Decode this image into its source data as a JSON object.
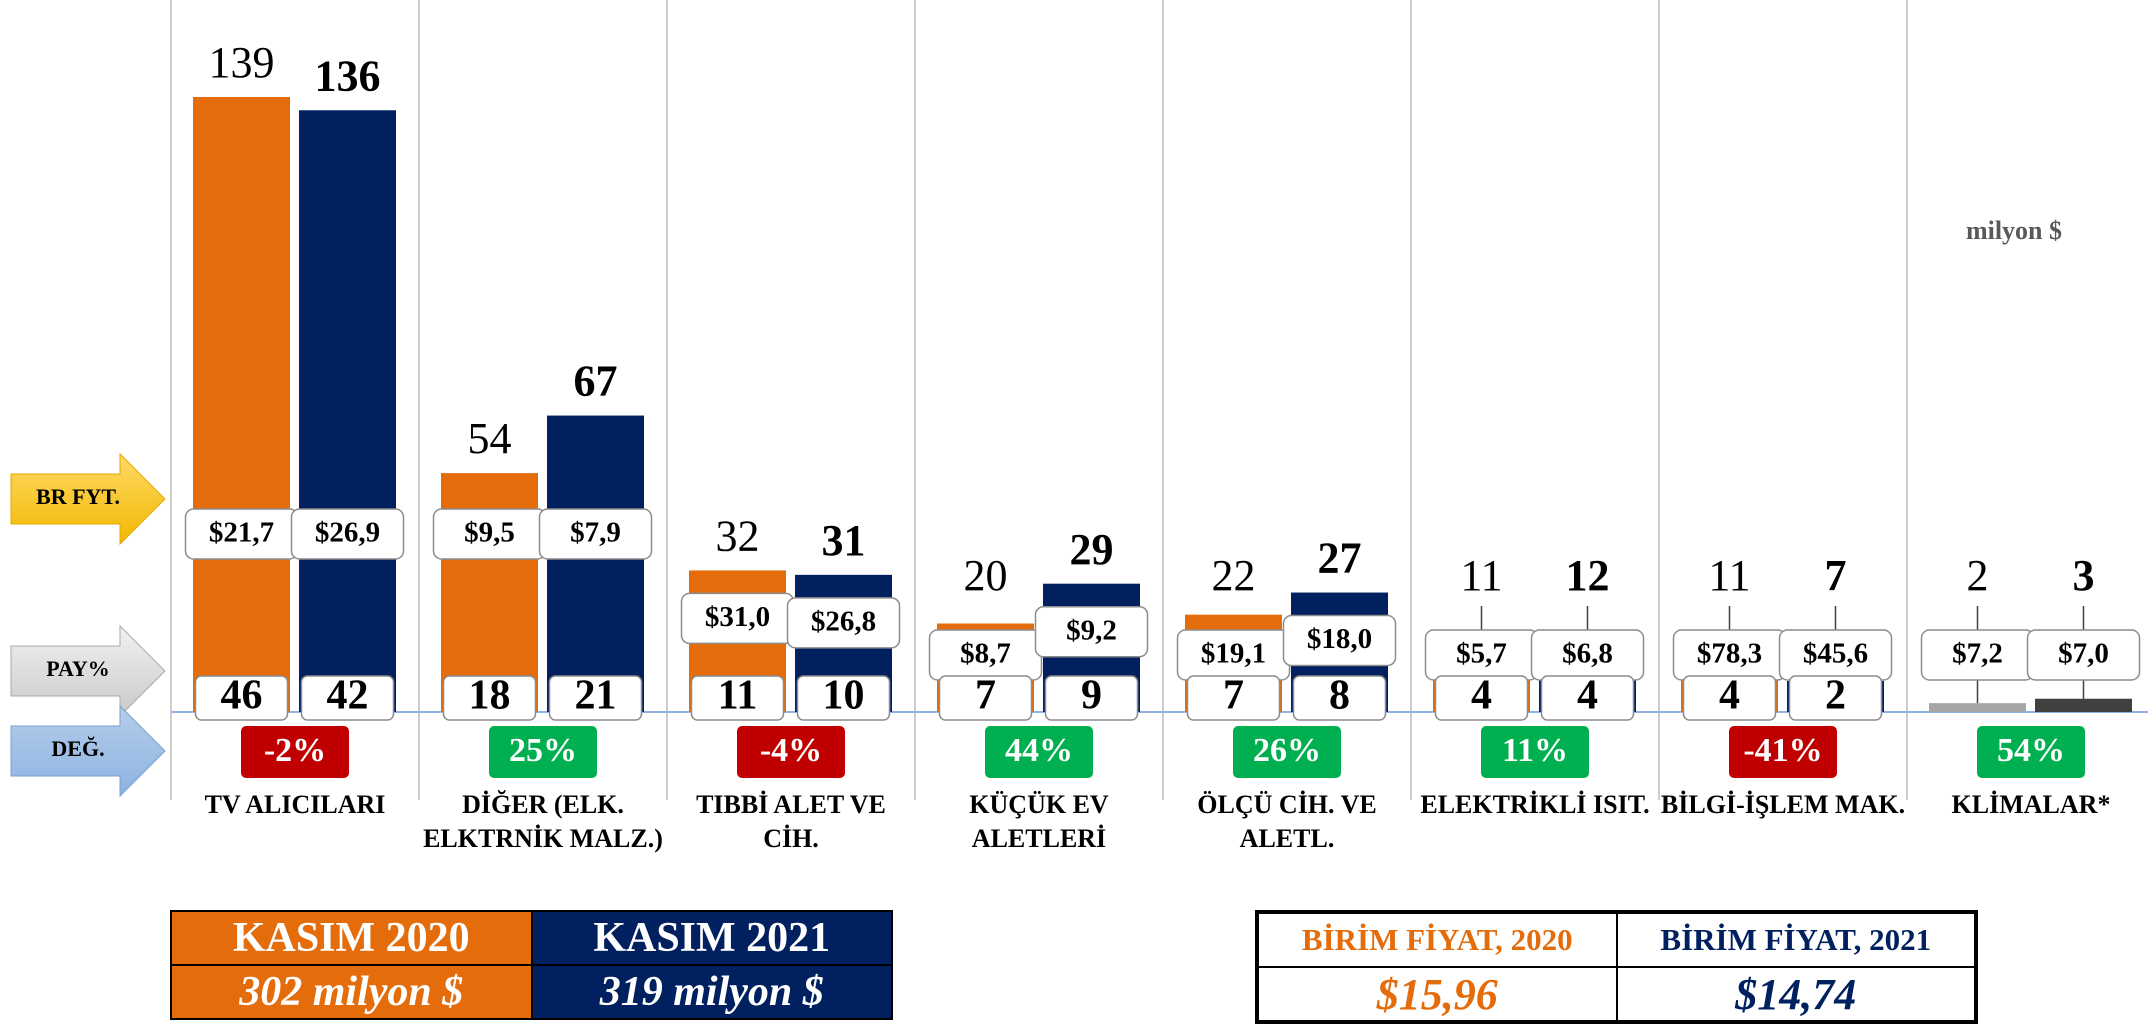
{
  "chart_data": {
    "type": "bar",
    "unit": "milyon $",
    "categories": [
      "TV ALICILARI",
      "DİĞER (ELK.\nELKTRNİK MALZ.)",
      "TIBBİ ALET VE\nCİH.",
      "KÜÇÜK EV\nALETLERİ",
      "ÖLÇÜ CİH. VE\nALETL.",
      "ELEKTRİKLİ ISIT.",
      "BİLGİ-İŞLEM MAK.",
      "KLİMALAR*"
    ],
    "row_labels": [
      "BR FYT.",
      "PAY%",
      "DEĞ."
    ],
    "series": [
      {
        "name": "KASIM 2020",
        "color": "#e46c0a",
        "colors": [
          "#e46c0a",
          "#e46c0a",
          "#e46c0a",
          "#e46c0a",
          "#e46c0a",
          "#e46c0a",
          "#e46c0a",
          "#a6a6a6"
        ],
        "values": [
          139,
          54,
          32,
          20,
          22,
          11,
          11,
          2
        ],
        "unit_price_labels": [
          "$21,7",
          "$9,5",
          "$31,0",
          "$8,7",
          "$19,1",
          "$5,7",
          "$78,3",
          "$7,2"
        ],
        "shares": [
          46,
          18,
          11,
          7,
          7,
          4,
          4,
          null
        ],
        "total_label": "302 milyon $",
        "unit_price_header": "BİRİM FİYAT, 2020",
        "avg_unit_price": "$15,96"
      },
      {
        "name": "KASIM 2021",
        "color": "#002060",
        "colors": [
          "#002060",
          "#002060",
          "#002060",
          "#002060",
          "#002060",
          "#002060",
          "#002060",
          "#404040"
        ],
        "values": [
          136,
          67,
          31,
          29,
          27,
          12,
          7,
          3
        ],
        "unit_price_labels": [
          "$26,9",
          "$7,9",
          "$26,8",
          "$9,2",
          "$18,0",
          "$6,8",
          "$45,6",
          "$7,0"
        ],
        "shares": [
          42,
          21,
          10,
          9,
          8,
          4,
          2,
          null
        ],
        "total_label": "319 milyon $",
        "unit_price_header": "BİRİM FİYAT, 2021",
        "avg_unit_price": "$14,74"
      }
    ],
    "changes": [
      -2,
      25,
      -4,
      44,
      26,
      11,
      -41,
      54
    ],
    "change_labels": [
      "-2%",
      "25%",
      "-4%",
      "44%",
      "26%",
      "11%",
      "-41%",
      "54%"
    ],
    "positive_color": "#00b050",
    "negative_color": "#c00000"
  }
}
